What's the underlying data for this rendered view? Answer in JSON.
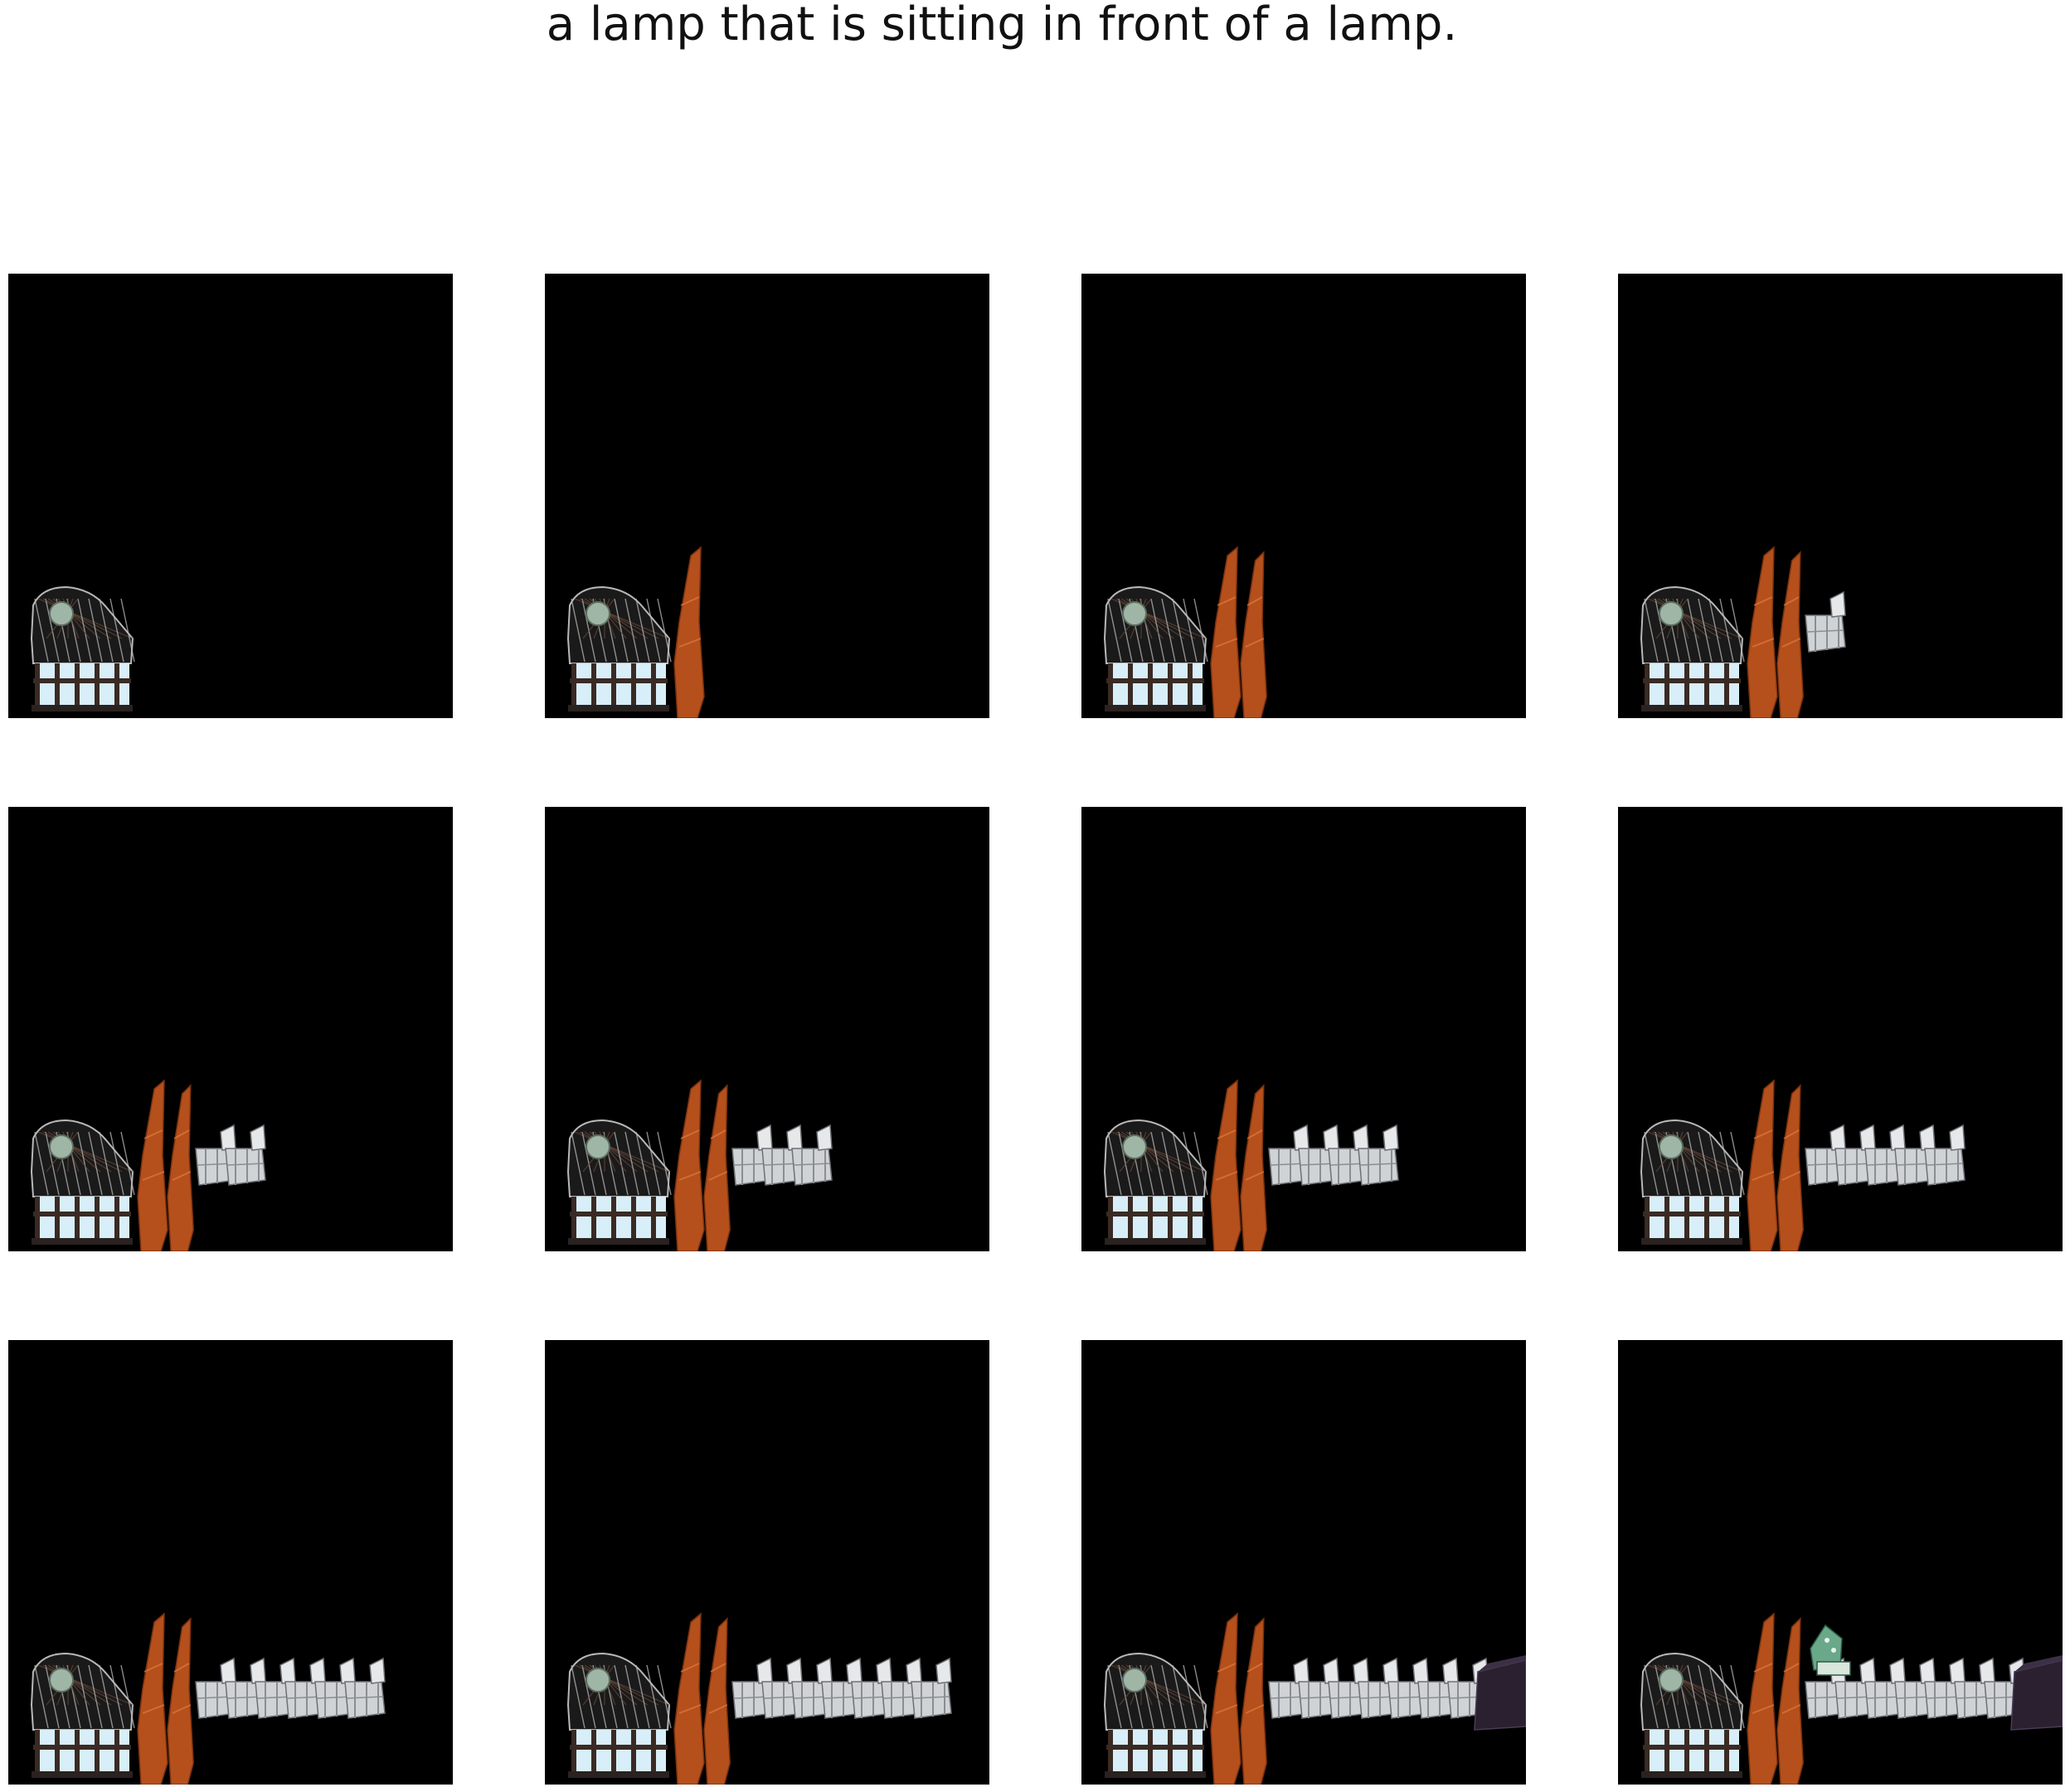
{
  "figure": {
    "title": "a lamp that is sitting in front of a lamp."
  },
  "colors": {
    "page_background": "#ffffff",
    "panel_background": "#000000",
    "lamp_wire": "#b8b8b8",
    "lamp_dial": "#9fb5a5",
    "lamp_base_glow": "#d8eef8",
    "orange_chair": "#b5501c",
    "gray_chair": "#d0d3d6",
    "dark_cube": "#2a2030",
    "green_object": "#6aa88a"
  },
  "panels": [
    {
      "step": 1,
      "objects": [
        "lamp"
      ],
      "gray_chairs": 0
    },
    {
      "step": 2,
      "objects": [
        "lamp",
        "orange-chair"
      ],
      "gray_chairs": 0
    },
    {
      "step": 3,
      "objects": [
        "lamp",
        "orange-chair",
        "orange-chair"
      ],
      "gray_chairs": 0
    },
    {
      "step": 4,
      "objects": [
        "lamp",
        "orange-chair",
        "orange-chair"
      ],
      "gray_chairs": 1
    },
    {
      "step": 5,
      "objects": [
        "lamp",
        "orange-chair",
        "orange-chair"
      ],
      "gray_chairs": 2
    },
    {
      "step": 6,
      "objects": [
        "lamp",
        "orange-chair",
        "orange-chair"
      ],
      "gray_chairs": 3
    },
    {
      "step": 7,
      "objects": [
        "lamp",
        "orange-chair",
        "orange-chair"
      ],
      "gray_chairs": 4
    },
    {
      "step": 8,
      "objects": [
        "lamp",
        "orange-chair",
        "orange-chair"
      ],
      "gray_chairs": 5
    },
    {
      "step": 9,
      "objects": [
        "lamp",
        "orange-chair",
        "orange-chair"
      ],
      "gray_chairs": 6
    },
    {
      "step": 10,
      "objects": [
        "lamp",
        "orange-chair",
        "orange-chair"
      ],
      "gray_chairs": 7
    },
    {
      "step": 11,
      "objects": [
        "lamp",
        "orange-chair",
        "orange-chair",
        "dark-cube"
      ],
      "gray_chairs": 7
    },
    {
      "step": 12,
      "objects": [
        "lamp",
        "orange-chair",
        "orange-chair",
        "dark-cube",
        "green-object"
      ],
      "gray_chairs": 7
    }
  ]
}
